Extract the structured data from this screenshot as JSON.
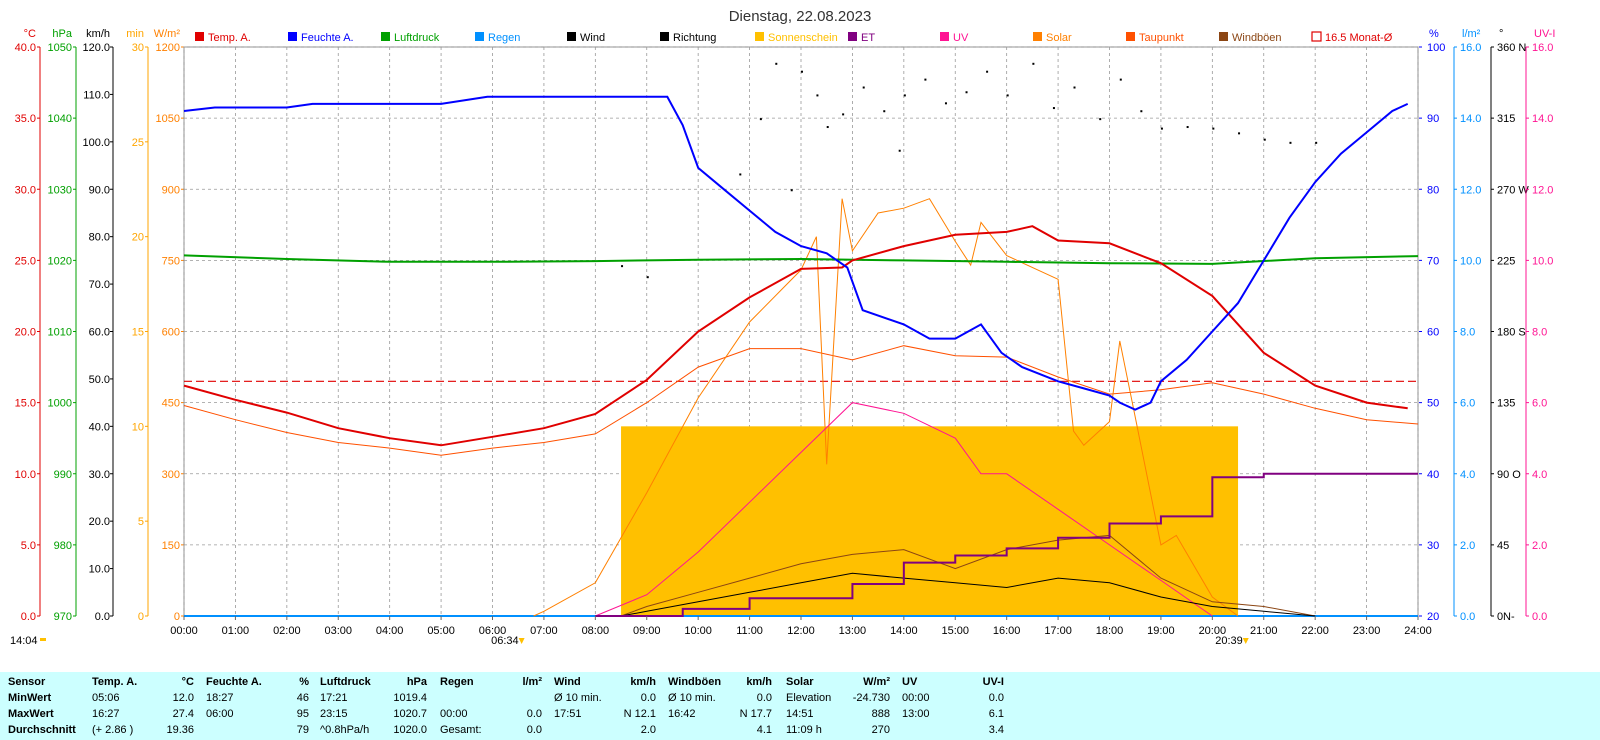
{
  "title": "Dienstag, 22.08.2023",
  "legend": [
    {
      "label": "Temp. A.",
      "color": "#e00000",
      "style": "fill"
    },
    {
      "label": "Feuchte A.",
      "color": "#0000ff",
      "style": "fill"
    },
    {
      "label": "Luftdruck",
      "color": "#00a000",
      "style": "fill"
    },
    {
      "label": "Regen",
      "color": "#0090ff",
      "style": "fill"
    },
    {
      "label": "Wind",
      "color": "#000000",
      "style": "fill"
    },
    {
      "label": "Richtung",
      "color": "#000000",
      "style": "fill"
    },
    {
      "label": "Sonnenschein",
      "color": "#ffc000",
      "style": "fill"
    },
    {
      "label": "ET",
      "color": "#800080",
      "style": "fill"
    },
    {
      "label": "UV",
      "color": "#ff1493",
      "style": "fill"
    },
    {
      "label": "Solar",
      "color": "#ff8000",
      "style": "fill"
    },
    {
      "label": "Taupunkt",
      "color": "#ff5000",
      "style": "fill"
    },
    {
      "label": "Windböen",
      "color": "#8b4513",
      "style": "fill"
    },
    {
      "label": "16.5 Monat-Ø",
      "color": "#e00000",
      "style": "outline"
    }
  ],
  "axes_left": [
    {
      "unit": "°C",
      "color": "#e00000",
      "ticks": [
        "0.0",
        "5.0",
        "10.0",
        "15.0",
        "20.0",
        "25.0",
        "30.0",
        "35.0",
        "40.0"
      ]
    },
    {
      "unit": "hPa",
      "color": "#00a000",
      "ticks": [
        "970",
        "980",
        "990",
        "1000",
        "1010",
        "1020",
        "1030",
        "1040",
        "1050"
      ]
    },
    {
      "unit": "km/h",
      "color": "#000000",
      "ticks": [
        "0.0",
        "10.0",
        "20.0",
        "30.0",
        "40.0",
        "50.0",
        "60.0",
        "70.0",
        "80.0",
        "90.0",
        "100.0",
        "110.0",
        "120.0"
      ]
    },
    {
      "unit": "min",
      "color": "#ffa500",
      "ticks": [
        "0",
        "5",
        "10",
        "15",
        "20",
        "25",
        "30"
      ]
    },
    {
      "unit": "W/m²",
      "color": "#ff8000",
      "ticks": [
        "0",
        "150",
        "300",
        "450",
        "600",
        "750",
        "900",
        "1050",
        "1200"
      ]
    }
  ],
  "axes_right": [
    {
      "unit": "%",
      "color": "#0000ff",
      "ticks": [
        "20",
        "30",
        "40",
        "50",
        "60",
        "70",
        "80",
        "90",
        "100"
      ]
    },
    {
      "unit": "l/m²",
      "color": "#0090ff",
      "ticks": [
        "0.0",
        "2.0",
        "4.0",
        "6.0",
        "8.0",
        "10.0",
        "12.0",
        "14.0",
        "16.0"
      ]
    },
    {
      "unit": "°",
      "color": "#000000",
      "ticks": [
        "0",
        "45",
        "90 O",
        "135",
        "180 S",
        "225",
        "270 W",
        "315",
        "360 N"
      ]
    },
    {
      "unit": "UV-I",
      "color": "#ff1493",
      "ticks": [
        "0.0",
        "2.0",
        "4.0",
        "6.0",
        "8.0",
        "10.0",
        "12.0",
        "14.0",
        "16.0"
      ]
    }
  ],
  "dir_n_labels": [
    "N-",
    "N-"
  ],
  "time_labels": [
    "00:00",
    "01:00",
    "02:00",
    "03:00",
    "04:00",
    "05:00",
    "06:00",
    "07:00",
    "08:00",
    "09:00",
    "10:00",
    "11:00",
    "12:00",
    "13:00",
    "14:00",
    "15:00",
    "16:00",
    "17:00",
    "18:00",
    "19:00",
    "20:00",
    "21:00",
    "22:00",
    "23:00",
    "24:00"
  ],
  "sunrise": "06:34",
  "sunset": "20:39",
  "current_time": "14:04",
  "chart_data": {
    "type": "line",
    "title": "Dienstag, 22.08.2023",
    "x_range": [
      "00:00",
      "24:00"
    ],
    "series": [
      {
        "name": "Temp. A.",
        "unit": "°C",
        "x": [
          0,
          1,
          2,
          3,
          4,
          5,
          6,
          7,
          8,
          9,
          10,
          11,
          12,
          12.8,
          13,
          14,
          15,
          16,
          16.5,
          17,
          18,
          19,
          20,
          21,
          22,
          23,
          23.8
        ],
        "y": [
          16.2,
          15.2,
          14.3,
          13.2,
          12.5,
          12.0,
          12.6,
          13.2,
          14.2,
          16.6,
          20.0,
          22.4,
          24.4,
          24.5,
          25.0,
          26.0,
          26.8,
          27.0,
          27.4,
          26.4,
          26.2,
          24.8,
          22.5,
          18.5,
          16.2,
          15.0,
          14.6
        ]
      },
      {
        "name": "Feuchte A.",
        "unit": "%",
        "x": [
          0,
          0.6,
          1,
          2,
          2.5,
          3,
          4,
          5,
          5.9,
          6.5,
          7,
          8,
          9,
          9.4,
          9.7,
          10,
          10.5,
          11,
          11.5,
          12,
          12.5,
          12.9,
          13.2,
          14,
          14.5,
          15,
          15.5,
          15.9,
          16.3,
          17,
          17.5,
          18,
          18.2,
          18.5,
          18.8,
          19,
          19.5,
          20,
          20.5,
          21,
          21.5,
          22,
          22.5,
          23,
          23.5,
          23.8
        ],
        "y": [
          91,
          91.5,
          91.5,
          91.5,
          92,
          92,
          92,
          92,
          93,
          93,
          93,
          93,
          93,
          93,
          89,
          83,
          80,
          77,
          74,
          72,
          71,
          69,
          63,
          61,
          59,
          59,
          61,
          57,
          55,
          53,
          52,
          51,
          50,
          49,
          50,
          53,
          56,
          60,
          64,
          70,
          76,
          81,
          85,
          88,
          91,
          92
        ]
      },
      {
        "name": "Luftdruck",
        "unit": "hPa",
        "x": [
          0,
          2,
          4,
          6,
          8,
          10,
          12,
          14,
          16,
          18,
          20,
          22,
          24
        ],
        "y": [
          1020.7,
          1020.2,
          1019.8,
          1019.8,
          1019.9,
          1020.1,
          1020.2,
          1020.0,
          1019.8,
          1019.6,
          1019.5,
          1020.3,
          1020.6
        ]
      },
      {
        "name": "Regen",
        "unit": "l/m²",
        "x": [
          0,
          24
        ],
        "y": [
          0.0,
          0.0
        ]
      },
      {
        "name": "Sonnenschein",
        "unit": "min",
        "x": [
          8.5,
          9,
          10,
          11,
          12,
          13,
          14,
          15,
          16,
          17,
          18,
          19,
          20,
          20.5
        ],
        "y": [
          10,
          10,
          10,
          10,
          10,
          10,
          10,
          10,
          10,
          10,
          10,
          10,
          10,
          10
        ]
      },
      {
        "name": "ET",
        "unit": "l/m²",
        "x": [
          8,
          9.7,
          10.5,
          11,
          12,
          13,
          14,
          15,
          16,
          17,
          18,
          19,
          20,
          21,
          22,
          24
        ],
        "y": [
          0.0,
          0.2,
          0.2,
          0.5,
          0.5,
          0.9,
          1.5,
          1.7,
          1.9,
          2.2,
          2.6,
          2.8,
          3.9,
          4.0,
          4.0,
          4.0
        ]
      },
      {
        "name": "UV",
        "unit": "UV-I",
        "x": [
          8,
          9,
          10,
          11,
          12,
          13,
          14,
          15,
          15.5,
          16,
          17,
          18,
          19,
          20
        ],
        "y": [
          0.0,
          0.6,
          1.8,
          3.2,
          4.6,
          6.0,
          5.7,
          5.0,
          4.0,
          4.0,
          3.0,
          2.0,
          1.0,
          0.0
        ]
      },
      {
        "name": "Solar",
        "unit": "W/m²",
        "x": [
          6.8,
          7,
          8,
          9,
          10,
          11,
          12,
          12.3,
          12.5,
          12.8,
          13,
          13.5,
          14,
          14.5,
          15,
          15.3,
          15.5,
          16,
          17,
          17.3,
          17.5,
          18,
          18.2,
          18.5,
          19,
          19.3,
          20,
          20.5
        ],
        "y": [
          0,
          10,
          70,
          260,
          460,
          620,
          730,
          800,
          320,
          880,
          770,
          850,
          860,
          880,
          790,
          740,
          830,
          760,
          710,
          390,
          360,
          410,
          580,
          420,
          150,
          170,
          40,
          0
        ]
      },
      {
        "name": "Taupunkt",
        "unit": "°C",
        "x": [
          0,
          1,
          2,
          3,
          4,
          5,
          6,
          7,
          8,
          9,
          10,
          11,
          12,
          13,
          14,
          15,
          16,
          17,
          18,
          19,
          20,
          21,
          22,
          23,
          24
        ],
        "y": [
          14.8,
          13.8,
          12.9,
          12.2,
          11.8,
          11.3,
          11.8,
          12.2,
          12.8,
          15.0,
          17.5,
          18.8,
          18.8,
          18.0,
          19.0,
          18.3,
          18.2,
          16.8,
          15.6,
          15.9,
          16.4,
          15.6,
          14.6,
          13.8,
          13.5
        ]
      },
      {
        "name": "Wind",
        "unit": "km/h",
        "x": [
          8.5,
          9,
          10,
          11,
          12,
          13,
          14,
          15,
          16,
          17,
          18,
          19,
          20,
          21,
          22
        ],
        "y": [
          0,
          1,
          3,
          5,
          7,
          9,
          8,
          7,
          6,
          8,
          7,
          4,
          2,
          1,
          0
        ]
      },
      {
        "name": "Windböen",
        "unit": "km/h",
        "x": [
          8.5,
          9,
          10,
          11,
          12,
          13,
          14,
          15,
          16,
          17,
          18,
          19,
          20,
          21,
          22
        ],
        "y": [
          0,
          2,
          5,
          8,
          11,
          13,
          14,
          10,
          14,
          16,
          17,
          8,
          3,
          2,
          0
        ]
      },
      {
        "name": "16.5 Monat-Ø",
        "unit": "°C",
        "x": [
          0,
          24
        ],
        "y": [
          16.5,
          16.5
        ]
      }
    ],
    "richtung_points": [
      {
        "x": 11.2,
        "y": 315
      },
      {
        "x": 11.5,
        "y": 350
      },
      {
        "x": 12,
        "y": 345
      },
      {
        "x": 12.3,
        "y": 330
      },
      {
        "x": 12.8,
        "y": 318
      },
      {
        "x": 13.2,
        "y": 335
      },
      {
        "x": 13.6,
        "y": 320
      },
      {
        "x": 14,
        "y": 330
      },
      {
        "x": 14.4,
        "y": 340
      },
      {
        "x": 14.8,
        "y": 325
      },
      {
        "x": 15.2,
        "y": 332
      },
      {
        "x": 15.6,
        "y": 345
      },
      {
        "x": 16,
        "y": 330
      },
      {
        "x": 16.5,
        "y": 350
      },
      {
        "x": 16.9,
        "y": 322
      },
      {
        "x": 17.3,
        "y": 335
      },
      {
        "x": 17.8,
        "y": 315
      },
      {
        "x": 18.2,
        "y": 340
      },
      {
        "x": 18.6,
        "y": 320
      },
      {
        "x": 19.0,
        "y": 309
      },
      {
        "x": 19.5,
        "y": 310
      },
      {
        "x": 20.0,
        "y": 309
      },
      {
        "x": 20.5,
        "y": 306
      },
      {
        "x": 21.0,
        "y": 302
      },
      {
        "x": 21.5,
        "y": 300
      },
      {
        "x": 22.0,
        "y": 300
      },
      {
        "x": 10.8,
        "y": 280
      },
      {
        "x": 11.8,
        "y": 270
      },
      {
        "x": 8.5,
        "y": 222
      },
      {
        "x": 9.0,
        "y": 215
      },
      {
        "x": 12.5,
        "y": 310
      },
      {
        "x": 13.9,
        "y": 295
      }
    ]
  },
  "table": {
    "headers": [
      "Sensor",
      "Temp. A.",
      "°C",
      "Feuchte A.",
      "%",
      "Luftdruck",
      "hPa",
      "Regen",
      "l/m²",
      "Wind",
      "km/h",
      "Windböen",
      "km/h",
      "Solar",
      "W/m²",
      "UV",
      "UV-I"
    ],
    "rows": [
      {
        "label": "MinWert",
        "cells": [
          "05:06",
          "12.0",
          "18:27",
          "46",
          "17:21",
          "1019.4",
          "",
          "",
          "Ø 10 min.",
          "0.0",
          "Ø 10 min.",
          "0.0",
          "Elevation",
          "-24.730",
          "00:00",
          "0.0"
        ]
      },
      {
        "label": "MaxWert",
        "cells": [
          "16:27",
          "27.4",
          "06:00",
          "95",
          "23:15",
          "1020.7",
          "00:00",
          "0.0",
          "17:51",
          "N 12.1",
          "16:42",
          "N 17.7",
          "14:51",
          "888",
          "13:00",
          "6.1"
        ]
      },
      {
        "label": "Durchschnitt",
        "cells": [
          "(+ 2.86 )",
          "19.36",
          "",
          "79",
          "^0.8hPa/h",
          "1020.0",
          "Gesamt:",
          "0.0",
          "",
          "2.0",
          "",
          "4.1",
          "11:09 h",
          "270",
          "",
          "3.4"
        ]
      }
    ]
  }
}
